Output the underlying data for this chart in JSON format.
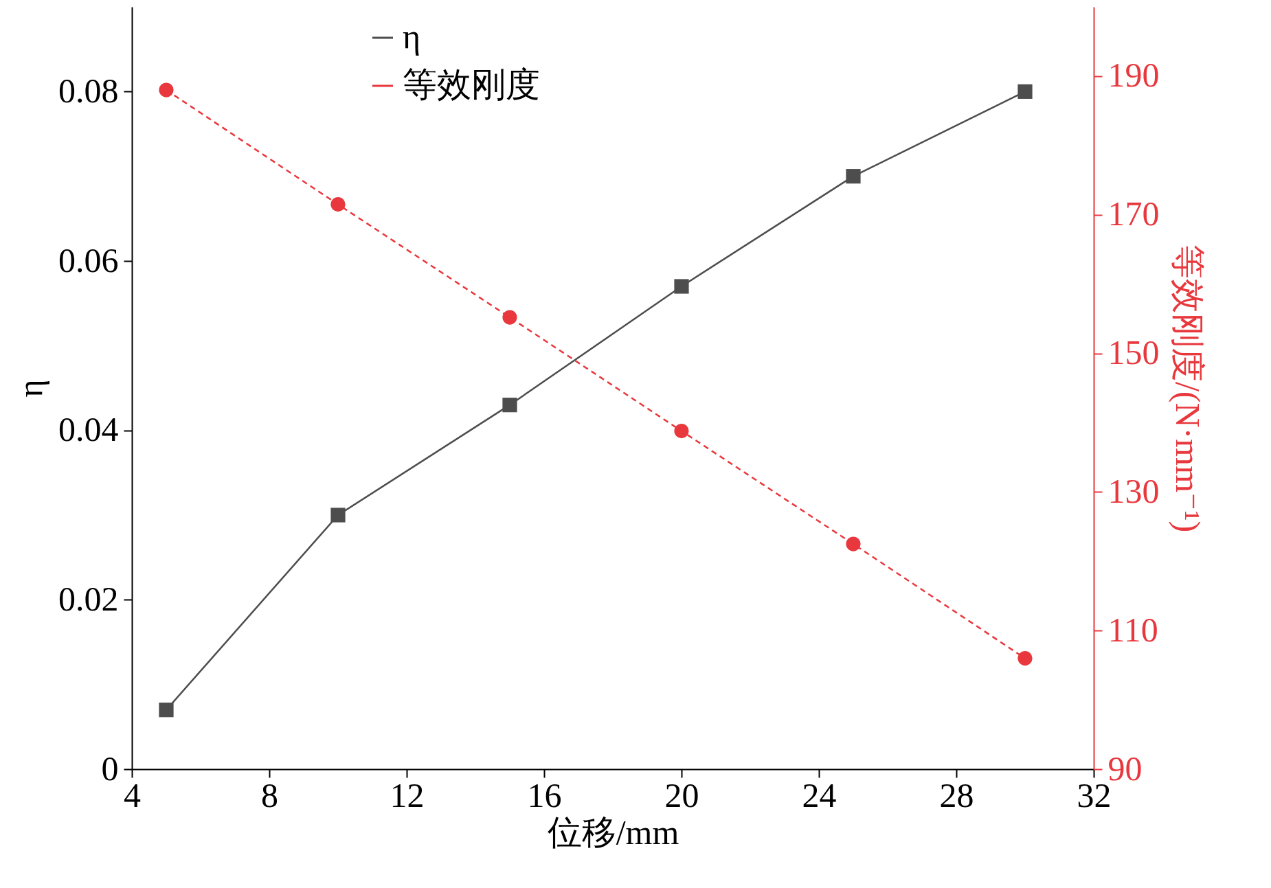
{
  "chart_data": {
    "type": "line",
    "xlabel": "位移/mm",
    "ylabel": "η",
    "y2label": "等效刚度/(N·mm⁻¹)",
    "x": [
      5,
      10,
      15,
      20,
      25,
      30
    ],
    "xlim": [
      4,
      32
    ],
    "xticks": [
      4,
      8,
      12,
      16,
      20,
      24,
      28,
      32
    ],
    "ylim": [
      0,
      0.09
    ],
    "yticks": [
      0,
      0.02,
      0.04,
      0.06,
      0.08
    ],
    "y2lim": [
      90,
      200
    ],
    "y2ticks": [
      90,
      110,
      130,
      150,
      170,
      190
    ],
    "grid": false,
    "legend": "top",
    "series": [
      {
        "name": "η",
        "color": "#4d4d4d",
        "marker": "square",
        "line_style": "solid",
        "values": [
          0.007,
          0.03,
          0.043,
          0.057,
          0.07,
          0.08
        ]
      },
      {
        "name": "等效刚度",
        "color": "#e8383d",
        "marker": "circle",
        "line_style": "dashed",
        "axis": "y2",
        "values": [
          188.0,
          171.5,
          155.2,
          138.8,
          122.5,
          106.0
        ]
      }
    ]
  }
}
